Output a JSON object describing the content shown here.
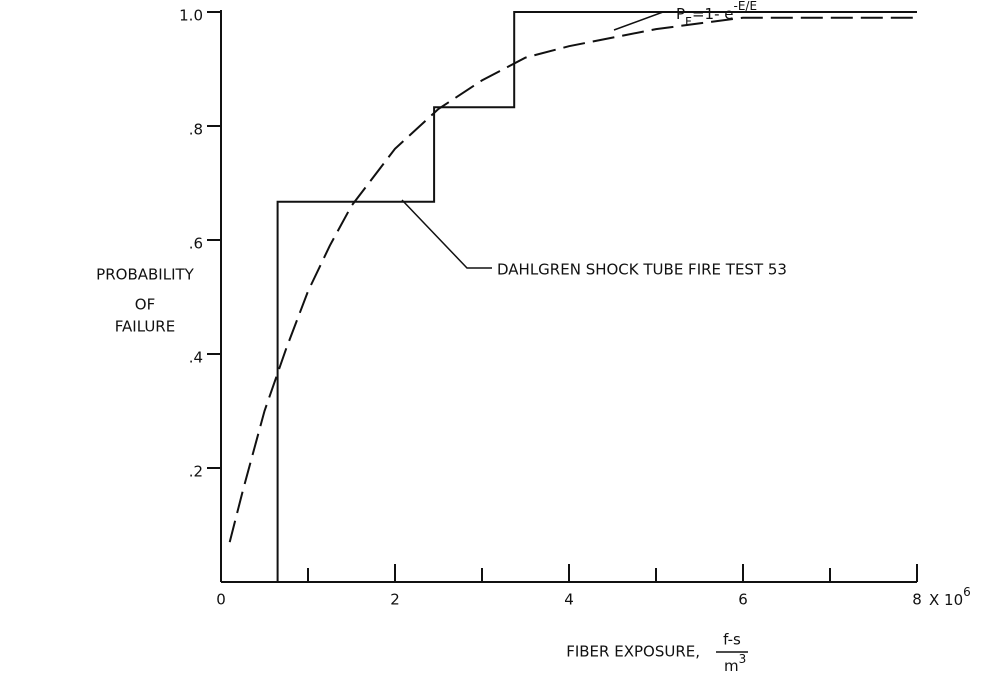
{
  "chart_data": {
    "type": "line",
    "y_label": [
      "PROBABILITY",
      "OF",
      "FAILURE"
    ],
    "x_label": "FIBER EXPOSURE,",
    "x_unit": {
      "numerator": "f-s",
      "denominator": "m",
      "denominator_exponent": "3"
    },
    "x_scale": {
      "base": "X 10",
      "exponent": "6"
    },
    "xlim": [
      0,
      8
    ],
    "xticks": [
      0,
      2,
      4,
      6,
      8
    ],
    "xminor_ticks": [
      1,
      3,
      5,
      7
    ],
    "ylim": [
      0,
      1
    ],
    "yticks": [
      {
        "value": 0.2,
        "label": ".2"
      },
      {
        "value": 0.4,
        "label": ".4"
      },
      {
        "value": 0.6,
        "label": ".6"
      },
      {
        "value": 0.8,
        "label": ".8"
      },
      {
        "value": 1,
        "label": "1.0"
      }
    ],
    "series": [
      {
        "name": "DAHLGREN SHOCK TUBE FIRE TEST 53",
        "color": "#111111",
        "step": "post",
        "line_style": "solid",
        "x": [
          0,
          0.65,
          2.45,
          3.37,
          8
        ],
        "values": [
          0,
          0.667,
          0.833,
          1.0,
          1.0
        ]
      },
      {
        "name": "P_F = 1- e^-E/Ē",
        "color": "#111111",
        "line_style": "dashed",
        "x": [
          0.1,
          0.25,
          0.5,
          0.75,
          1,
          1.25,
          1.5,
          2,
          2.5,
          3,
          3.5,
          4,
          5,
          6,
          7,
          8
        ],
        "values": [
          0.07,
          0.16,
          0.3,
          0.41,
          0.51,
          0.59,
          0.66,
          0.76,
          0.83,
          0.88,
          0.92,
          0.94,
          0.97,
          0.99,
          0.99,
          0.99
        ]
      }
    ],
    "annotations": [
      {
        "text": "P",
        "sub": "F",
        "rest": "=1- e",
        "sup": "-E/Ē"
      },
      {
        "text": "DAHLGREN SHOCK TUBE FIRE TEST 53"
      }
    ]
  }
}
